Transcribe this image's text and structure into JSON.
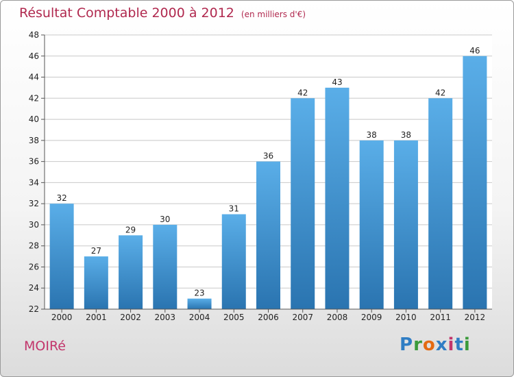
{
  "header": {
    "title": "Résultat Comptable 2000 à 2012",
    "subtitle": "(en milliers d'€)"
  },
  "footer": {
    "commune": "MOIRé",
    "logo_text": "Proxiti"
  },
  "colors": {
    "bar_top": "#5aaee8",
    "bar_bottom": "#2a74b0",
    "grid": "#c8c8c8",
    "title": "#b0284e"
  },
  "chart_data": {
    "type": "bar",
    "title": "Résultat Comptable 2000 à 2012",
    "subtitle": "(en milliers d'€)",
    "xlabel": "",
    "ylabel": "",
    "categories": [
      "2000",
      "2001",
      "2002",
      "2003",
      "2004",
      "2005",
      "2006",
      "2007",
      "2008",
      "2009",
      "2010",
      "2011",
      "2012"
    ],
    "values": [
      32,
      27,
      29,
      30,
      23,
      31,
      36,
      42,
      43,
      38,
      38,
      42,
      46
    ],
    "ylim": [
      22,
      48
    ],
    "yticks": [
      22,
      24,
      26,
      28,
      30,
      32,
      34,
      36,
      38,
      40,
      42,
      44,
      46,
      48
    ],
    "grid": true,
    "legend": "none"
  }
}
